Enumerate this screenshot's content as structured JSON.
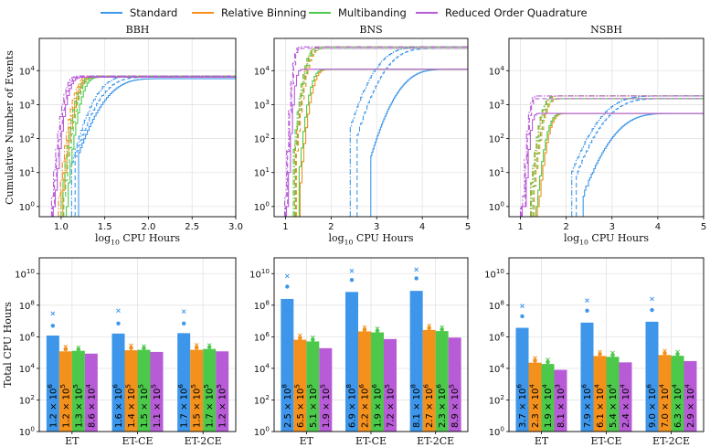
{
  "colors": {
    "standard": "#3d96ea",
    "relative_binning": "#f4901c",
    "multibanding": "#4cc94a",
    "roq": "#b85bd6"
  },
  "legend": [
    "Standard",
    "Relative Binning",
    "Multibanding",
    "Reduced Order Quadrature"
  ],
  "chart_data": [
    {
      "type": "line",
      "title": "BBH",
      "xlabel": "log$_{10}$ CPU Hours",
      "ylabel": "Cumulative Number of Events",
      "xlim": [
        0.75,
        3.0
      ],
      "ylim_log10": [
        -0.3,
        4.95
      ],
      "log_y": true,
      "grid": true,
      "x_ticks": [
        "1.0",
        "1.5",
        "2.0",
        "2.5",
        "3.0"
      ],
      "x_tick_values": [
        1.0,
        1.5,
        2.0,
        2.5,
        3.0
      ],
      "y_ticks": [
        "10^0",
        "10^1",
        "10^2",
        "10^3",
        "10^4"
      ],
      "total_events": 7000,
      "series": [
        {
          "key": "standard",
          "name": "Standard",
          "variants": [
            {
              "style": "solid",
              "x10": 1.28,
              "x50": 1.62,
              "spread": 0.17,
              "final": 5800
            },
            {
              "style": "dashed",
              "x10": 1.24,
              "x50": 1.55,
              "spread": 0.15,
              "final": 6400
            },
            {
              "style": "dashdot",
              "x10": 1.2,
              "x50": 1.48,
              "spread": 0.13,
              "final": 7000
            }
          ]
        },
        {
          "key": "relative_binning",
          "name": "Relative Binning",
          "variants": [
            {
              "style": "solid",
              "x10": 1.1,
              "x50": 1.22,
              "spread": 0.06,
              "final": 6400
            },
            {
              "style": "dashed",
              "x10": 1.08,
              "x50": 1.2,
              "spread": 0.06,
              "final": 6700
            },
            {
              "style": "dashdot",
              "x10": 1.05,
              "x50": 1.18,
              "spread": 0.06,
              "final": 7000
            }
          ]
        },
        {
          "key": "multibanding",
          "name": "Multibanding",
          "variants": [
            {
              "style": "solid",
              "x10": 1.14,
              "x50": 1.27,
              "spread": 0.06,
              "final": 6400
            },
            {
              "style": "dashed",
              "x10": 1.11,
              "x50": 1.24,
              "spread": 0.06,
              "final": 6700
            },
            {
              "style": "dashdot",
              "x10": 1.08,
              "x50": 1.21,
              "spread": 0.06,
              "final": 7000
            }
          ]
        },
        {
          "key": "roq",
          "name": "Reduced Order Quadrature",
          "variants": [
            {
              "style": "solid",
              "x10": 0.99,
              "x50": 1.1,
              "spread": 0.05,
              "final": 6400
            },
            {
              "style": "dashed",
              "x10": 0.98,
              "x50": 1.08,
              "spread": 0.05,
              "final": 6700
            },
            {
              "style": "dashdot",
              "x10": 0.97,
              "x50": 1.06,
              "spread": 0.05,
              "final": 7000
            }
          ]
        }
      ]
    },
    {
      "type": "line",
      "title": "BNS",
      "xlabel": "log$_{10}$ CPU Hours",
      "ylabel": "",
      "xlim": [
        0.75,
        5.0
      ],
      "ylim_log10": [
        -0.3,
        4.95
      ],
      "log_y": true,
      "grid": true,
      "x_ticks": [
        "1",
        "2",
        "3",
        "4",
        "5"
      ],
      "x_tick_values": [
        1,
        2,
        3,
        4,
        5
      ],
      "y_ticks": [
        "10^0",
        "10^1",
        "10^2",
        "10^3",
        "10^4"
      ],
      "total_events": 50000,
      "series": [
        {
          "key": "standard",
          "name": "Standard",
          "variants": [
            {
              "style": "solid",
              "x10": 2.95,
              "x50": 3.7,
              "spread": 0.3,
              "final": 11000
            },
            {
              "style": "dashed",
              "x10": 2.65,
              "x50": 3.4,
              "spread": 0.3,
              "final": 45000
            },
            {
              "style": "dashdot",
              "x10": 2.5,
              "x50": 3.2,
              "spread": 0.3,
              "final": 50000
            }
          ]
        },
        {
          "key": "relative_binning",
          "name": "Relative Binning",
          "variants": [
            {
              "style": "solid",
              "x10": 1.4,
              "x50": 1.65,
              "spread": 0.1,
              "final": 11000
            },
            {
              "style": "dashed",
              "x10": 1.32,
              "x50": 1.55,
              "spread": 0.1,
              "final": 45000
            },
            {
              "style": "dashdot",
              "x10": 1.28,
              "x50": 1.5,
              "spread": 0.1,
              "final": 50000
            }
          ]
        },
        {
          "key": "multibanding",
          "name": "Multibanding",
          "variants": [
            {
              "style": "solid",
              "x10": 1.38,
              "x50": 1.6,
              "spread": 0.1,
              "final": 11000
            },
            {
              "style": "dashed",
              "x10": 1.3,
              "x50": 1.52,
              "spread": 0.1,
              "final": 45000
            },
            {
              "style": "dashdot",
              "x10": 1.25,
              "x50": 1.48,
              "spread": 0.1,
              "final": 50000
            }
          ]
        },
        {
          "key": "roq",
          "name": "Reduced Order Quadrature",
          "variants": [
            {
              "style": "solid",
              "x10": 1.1,
              "x50": 1.22,
              "spread": 0.05,
              "final": 11000
            },
            {
              "style": "dashed",
              "x10": 1.08,
              "x50": 1.2,
              "spread": 0.05,
              "final": 45000
            },
            {
              "style": "dashdot",
              "x10": 1.06,
              "x50": 1.18,
              "spread": 0.05,
              "final": 50000
            }
          ]
        }
      ]
    },
    {
      "type": "line",
      "title": "NSBH",
      "xlabel": "log$_{10}$ CPU Hours",
      "ylabel": "",
      "xlim": [
        0.75,
        5.0
      ],
      "ylim_log10": [
        -0.3,
        4.95
      ],
      "log_y": true,
      "grid": true,
      "x_ticks": [
        "1",
        "2",
        "3",
        "4",
        "5"
      ],
      "x_tick_values": [
        1,
        2,
        3,
        4,
        5
      ],
      "y_ticks": [
        "10^0",
        "10^1",
        "10^2",
        "10^3",
        "10^4"
      ],
      "total_events": 1800,
      "series": [
        {
          "key": "standard",
          "name": "Standard",
          "variants": [
            {
              "style": "solid",
              "x10": 2.45,
              "x50": 3.3,
              "spread": 0.35,
              "final": 550
            },
            {
              "style": "dashed",
              "x10": 2.3,
              "x50": 3.1,
              "spread": 0.35,
              "final": 1500
            },
            {
              "style": "dashdot",
              "x10": 2.2,
              "x50": 3.0,
              "spread": 0.35,
              "final": 1800
            }
          ]
        },
        {
          "key": "relative_binning",
          "name": "Relative Binning",
          "variants": [
            {
              "style": "solid",
              "x10": 1.45,
              "x50": 1.68,
              "spread": 0.1,
              "final": 550
            },
            {
              "style": "dashed",
              "x10": 1.38,
              "x50": 1.58,
              "spread": 0.1,
              "final": 1500
            },
            {
              "style": "dashdot",
              "x10": 1.32,
              "x50": 1.52,
              "spread": 0.1,
              "final": 1800
            }
          ]
        },
        {
          "key": "multibanding",
          "name": "Multibanding",
          "variants": [
            {
              "style": "solid",
              "x10": 1.42,
              "x50": 1.64,
              "spread": 0.1,
              "final": 550
            },
            {
              "style": "dashed",
              "x10": 1.35,
              "x50": 1.55,
              "spread": 0.1,
              "final": 1500
            },
            {
              "style": "dashdot",
              "x10": 1.3,
              "x50": 1.5,
              "spread": 0.1,
              "final": 1800
            }
          ]
        },
        {
          "key": "roq",
          "name": "Reduced Order Quadrature",
          "variants": [
            {
              "style": "solid",
              "x10": 1.12,
              "x50": 1.24,
              "spread": 0.05,
              "final": 550
            },
            {
              "style": "dashed",
              "x10": 1.1,
              "x50": 1.22,
              "spread": 0.05,
              "final": 1500
            },
            {
              "style": "dashdot",
              "x10": 1.08,
              "x50": 1.2,
              "spread": 0.05,
              "final": 1800
            }
          ]
        }
      ]
    },
    {
      "type": "bar",
      "title": "BBH",
      "xlabel": "",
      "ylabel": "Total CPU Hours",
      "log_y": true,
      "ylim_log10": [
        0,
        11
      ],
      "grid": true,
      "y_ticks": [
        "10^0",
        "10^2",
        "10^4",
        "10^6",
        "10^8",
        "10^10"
      ],
      "categories": [
        "ET",
        "ET-CE",
        "ET-2CE"
      ],
      "series": [
        {
          "key": "standard",
          "name": "Standard",
          "values": [
            1200000,
            1600000,
            1700000
          ],
          "labels": [
            "1.2 × 10^6",
            "1.6 × 10^6",
            "1.7 × 10^6"
          ]
        },
        {
          "key": "relative_binning",
          "name": "Relative Binning",
          "values": [
            120000,
            140000,
            150000
          ],
          "labels": [
            "1.2 × 10^5",
            "1.4 × 10^5",
            "1.5 × 10^5"
          ]
        },
        {
          "key": "multibanding",
          "name": "Multibanding",
          "values": [
            130000,
            150000,
            170000
          ],
          "labels": [
            "1.3 × 10^5",
            "1.5 × 10^5",
            "1.7 × 10^5"
          ]
        },
        {
          "key": "roq",
          "name": "Reduced Order Quadrature",
          "values": [
            86000,
            110000,
            120000
          ],
          "labels": [
            "8.6 × 10^4",
            "1.1 × 10^5",
            "1.2 × 10^5"
          ]
        }
      ],
      "markers": [
        {
          "key": "standard",
          "category": "ET",
          "dot": 5000000,
          "cross": 30000000
        },
        {
          "key": "standard",
          "category": "ET-CE",
          "dot": 7000000,
          "cross": 45000000
        },
        {
          "key": "standard",
          "category": "ET-2CE",
          "dot": 7000000,
          "cross": 40000000
        },
        {
          "key": "relative_binning",
          "category": "ET",
          "dot": 160000,
          "cross": 230000
        },
        {
          "key": "relative_binning",
          "category": "ET-CE",
          "dot": 190000,
          "cross": 280000
        },
        {
          "key": "relative_binning",
          "category": "ET-2CE",
          "dot": 200000,
          "cross": 300000
        },
        {
          "key": "multibanding",
          "category": "ET",
          "dot": 160000,
          "cross": 210000
        },
        {
          "key": "multibanding",
          "category": "ET-CE",
          "dot": 190000,
          "cross": 250000
        },
        {
          "key": "multibanding",
          "category": "ET-2CE",
          "dot": 220000,
          "cross": 290000
        }
      ]
    },
    {
      "type": "bar",
      "title": "BNS",
      "xlabel": "",
      "ylabel": "",
      "log_y": true,
      "ylim_log10": [
        0,
        11
      ],
      "grid": true,
      "y_ticks": [
        "10^0",
        "10^2",
        "10^4",
        "10^6",
        "10^8",
        "10^10"
      ],
      "categories": [
        "ET",
        "ET-CE",
        "ET-2CE"
      ],
      "series": [
        {
          "key": "standard",
          "name": "Standard",
          "values": [
            250000000,
            690000000,
            810000000
          ],
          "labels": [
            "2.5 × 10^8",
            "6.9 × 10^8",
            "8.1 × 10^8"
          ]
        },
        {
          "key": "relative_binning",
          "name": "Relative Binning",
          "values": [
            650000,
            2200000,
            2700000
          ],
          "labels": [
            "6.5 × 10^5",
            "2.2 × 10^6",
            "2.7 × 10^6"
          ]
        },
        {
          "key": "multibanding",
          "name": "Multibanding",
          "values": [
            510000,
            1900000,
            2300000
          ],
          "labels": [
            "5.1 × 10^5",
            "1.9 × 10^6",
            "2.3 × 10^6"
          ]
        },
        {
          "key": "roq",
          "name": "Reduced Order Quadrature",
          "values": [
            190000,
            720000,
            890000
          ],
          "labels": [
            "1.9 × 10^5",
            "7.2 × 10^5",
            "8.9 × 10^5"
          ]
        }
      ],
      "markers": [
        {
          "key": "standard",
          "category": "ET",
          "dot": 1500000000,
          "cross": 7000000000
        },
        {
          "key": "standard",
          "category": "ET-CE",
          "dot": 4000000000,
          "cross": 15000000000
        },
        {
          "key": "standard",
          "category": "ET-2CE",
          "dot": 5000000000,
          "cross": 18000000000
        },
        {
          "key": "relative_binning",
          "category": "ET",
          "dot": 800000,
          "cross": 1200000
        },
        {
          "key": "relative_binning",
          "category": "ET-CE",
          "dot": 2800000,
          "cross": 4000000
        },
        {
          "key": "relative_binning",
          "category": "ET-2CE",
          "dot": 3400000,
          "cross": 5000000
        },
        {
          "key": "multibanding",
          "category": "ET",
          "dot": 650000,
          "cross": 900000
        },
        {
          "key": "multibanding",
          "category": "ET-CE",
          "dot": 2400000,
          "cross": 3300000
        },
        {
          "key": "multibanding",
          "category": "ET-2CE",
          "dot": 2900000,
          "cross": 4000000
        }
      ]
    },
    {
      "type": "bar",
      "title": "NSBH",
      "xlabel": "",
      "ylabel": "",
      "log_y": true,
      "ylim_log10": [
        0,
        11
      ],
      "grid": true,
      "y_ticks": [
        "10^0",
        "10^2",
        "10^4",
        "10^6",
        "10^8",
        "10^10"
      ],
      "categories": [
        "ET",
        "ET-CE",
        "ET-2CE"
      ],
      "series": [
        {
          "key": "standard",
          "name": "Standard",
          "values": [
            3700000,
            7900000,
            9000000
          ],
          "labels": [
            "3.7 × 10^6",
            "7.9 × 10^6",
            "9.0 × 10^6"
          ]
        },
        {
          "key": "relative_binning",
          "name": "Relative Binning",
          "values": [
            23000,
            61000,
            70000
          ],
          "labels": [
            "2.3 × 10^4",
            "6.1 × 10^4",
            "7.0 × 10^4"
          ]
        },
        {
          "key": "multibanding",
          "name": "Multibanding",
          "values": [
            19000,
            54000,
            63000
          ],
          "labels": [
            "1.9 × 10^4",
            "5.4 × 10^4",
            "6.3 × 10^4"
          ]
        },
        {
          "key": "roq",
          "name": "Reduced Order Quadrature",
          "values": [
            8100,
            24000,
            29000
          ],
          "labels": [
            "8.1 × 10^3",
            "2.4 × 10^4",
            "2.9 × 10^4"
          ]
        }
      ],
      "markers": [
        {
          "key": "standard",
          "category": "ET",
          "dot": 20000000,
          "cross": 90000000
        },
        {
          "key": "standard",
          "category": "ET-CE",
          "dot": 45000000,
          "cross": 200000000
        },
        {
          "key": "standard",
          "category": "ET-2CE",
          "dot": 50000000,
          "cross": 250000000
        },
        {
          "key": "relative_binning",
          "category": "ET",
          "dot": 30000,
          "cross": 45000
        },
        {
          "key": "relative_binning",
          "category": "ET-CE",
          "dot": 80000,
          "cross": 110000
        },
        {
          "key": "relative_binning",
          "category": "ET-2CE",
          "dot": 90000,
          "cross": 130000
        },
        {
          "key": "multibanding",
          "category": "ET",
          "dot": 25000,
          "cross": 35000
        },
        {
          "key": "multibanding",
          "category": "ET-CE",
          "dot": 70000,
          "cross": 95000
        },
        {
          "key": "multibanding",
          "category": "ET-2CE",
          "dot": 80000,
          "cross": 110000
        }
      ]
    }
  ]
}
